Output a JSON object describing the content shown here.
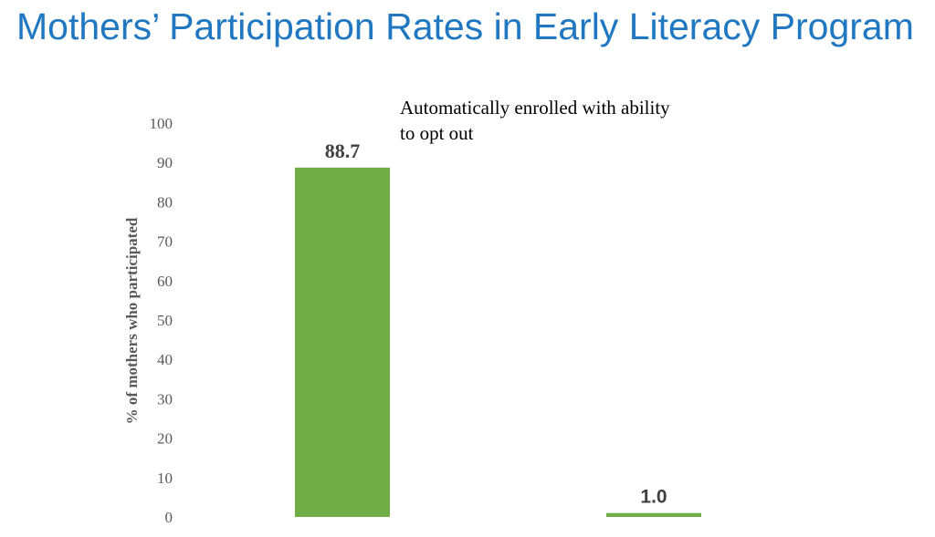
{
  "chart_data": {
    "type": "bar",
    "title": "Mothers’ Participation Rates in Early Literacy Program",
    "ylabel": "% of mothers who participated",
    "xlabel": "",
    "ylim": [
      0,
      100
    ],
    "yticks": [
      "0",
      "10",
      "20",
      "30",
      "40",
      "50",
      "60",
      "70",
      "80",
      "90",
      "100"
    ],
    "values": [
      88.7,
      1.0
    ],
    "data_labels": [
      "88.7",
      "1.0"
    ],
    "annotation_lines": [
      "Automatically enrolled with ability",
      "to opt out"
    ],
    "grid": false,
    "legend": "none",
    "bar_color": "#70ad47"
  }
}
